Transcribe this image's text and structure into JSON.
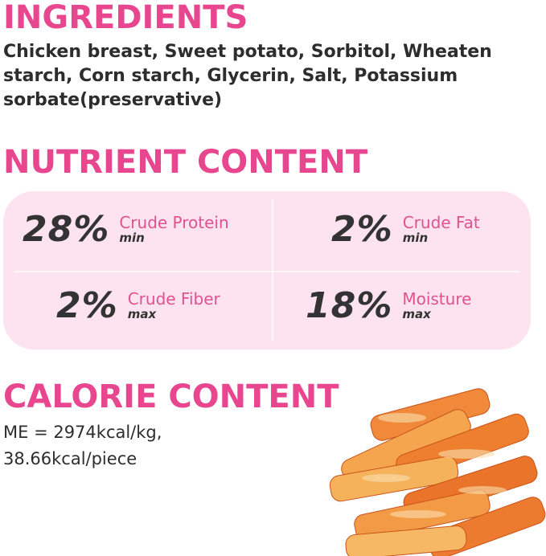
{
  "ingredients": {
    "heading": "INGREDIENTS",
    "text": "Chicken breast, Sweet potato, Sorbitol, Wheaten starch, Corn starch, Glycerin, Salt, Potassium sorbate(preservative)"
  },
  "nutrients": {
    "heading": "NUTRIENT CONTENT",
    "items": [
      {
        "value": "28%",
        "name": "Crude Protein",
        "qualifier": "min"
      },
      {
        "value": "2%",
        "name": "Crude Fat",
        "qualifier": "min"
      },
      {
        "value": "2%",
        "name": "Crude Fiber",
        "qualifier": "max"
      },
      {
        "value": "18%",
        "name": "Moisture",
        "qualifier": "max"
      }
    ]
  },
  "calorie": {
    "heading": "CALORIE CONTENT",
    "line1": "ME = 2974kcal/kg,",
    "line2": "38.66kcal/piece"
  },
  "colors": {
    "accent": "#e8478f",
    "panel": "#fce3ef",
    "text": "#2d2d2d"
  }
}
